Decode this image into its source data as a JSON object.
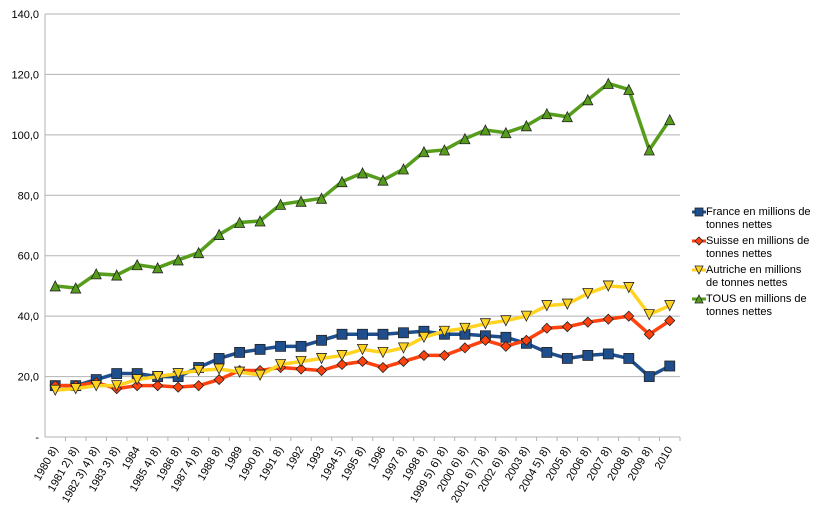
{
  "chart_data": {
    "type": "line",
    "categories": [
      "1980 8)",
      "1981 2) 8)",
      "1982 3) 4) 8)",
      "1983 3) 8)",
      "1984",
      "1985 4) 8)",
      "1986 8)",
      "1987 4) 8)",
      "1988 8)",
      "1989",
      "1990 8)",
      "1991 8)",
      "1992",
      "1993",
      "1994 5)",
      "1995 8)",
      "1996",
      "1997 8)",
      "1998 8)",
      "1999 5) 6) 8)",
      "2000 6) 8)",
      "2001 6) 7) 8)",
      "2002 6) 8)",
      "2003 8)",
      "2004 5) 8)",
      "2005 8)",
      "2006 8)",
      "2007 8)",
      "2008 8)",
      "2009 8)",
      "2010"
    ],
    "series": [
      {
        "name": "France en millions de tonnes nettes",
        "color": "#1f4e8c",
        "marker": "square",
        "values": [
          17,
          17,
          19,
          21,
          21,
          20,
          20,
          23,
          26,
          28,
          29,
          30,
          30,
          32,
          34,
          34,
          34,
          34.5,
          35,
          34,
          34,
          33.5,
          33,
          31,
          28,
          26,
          27,
          27.5,
          26,
          20,
          23.5
        ]
      },
      {
        "name": "Suisse en millions de tonnes nettes",
        "color": "#ff420e",
        "marker": "diamond",
        "values": [
          17,
          17,
          18,
          16,
          17,
          17,
          16.5,
          17,
          19,
          22,
          22,
          23,
          22.5,
          22,
          24,
          25,
          23,
          25,
          27,
          27,
          29.5,
          32,
          30,
          32,
          36,
          36.5,
          38,
          39,
          40,
          34,
          38.5
        ]
      },
      {
        "name": "Autriche en millions de tonnes nettes",
        "color": "#ffd320",
        "marker": "triangle-down",
        "values": [
          15.5,
          16,
          17,
          17,
          19,
          20,
          21,
          22,
          22.5,
          21.5,
          20.5,
          24,
          25,
          26,
          27,
          29,
          28,
          29.5,
          33,
          35,
          36,
          37.5,
          38.5,
          40,
          43.5,
          44,
          47.5,
          50,
          49.5,
          40.5,
          43.5
        ]
      },
      {
        "name": "TOUS en millions de tonnes nettes",
        "color": "#579d1c",
        "marker": "triangle-up",
        "values": [
          50,
          49.3,
          54,
          53.6,
          57,
          56,
          58.6,
          61,
          67,
          71,
          71.5,
          77,
          78,
          79,
          84.5,
          87.4,
          85,
          88.7,
          94.4,
          95,
          98.7,
          101.6,
          100.7,
          103,
          107,
          106,
          111.6,
          117,
          115,
          95,
          105
        ]
      }
    ],
    "ylim": [
      0,
      140
    ],
    "yticks": [
      {
        "value": 0,
        "label": "-"
      },
      {
        "value": 20,
        "label": "20,0"
      },
      {
        "value": 40,
        "label": "40,0"
      },
      {
        "value": 60,
        "label": "60,0"
      },
      {
        "value": 80,
        "label": "80,0"
      },
      {
        "value": 100,
        "label": "100,0"
      },
      {
        "value": 120,
        "label": "120,0"
      },
      {
        "value": 140,
        "label": "140,0"
      }
    ],
    "grid": true,
    "legend": "right"
  }
}
